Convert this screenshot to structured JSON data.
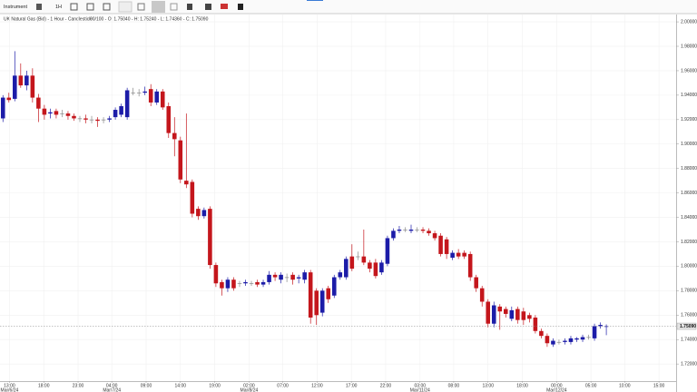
{
  "toolbar": {
    "instrument": "Instrument",
    "interval": "1H"
  },
  "chart_data": {
    "type": "candlestick",
    "title": "UK Natural Gas (Bid) - 1 Hour - Candlestick",
    "subtitle": "90/100 - O: 1.75040 - H: 1.75240 - L: 1.74360 - C: 1.75090",
    "up_color": "#1c1ca8",
    "down_color": "#c4161c",
    "flat_color": "#888888",
    "open": [
      1.921,
      1.938,
      1.937,
      1.956,
      1.948,
      1.956,
      1.938,
      1.929,
      1.925,
      1.927,
      1.925,
      1.925,
      1.923,
      1.921,
      1.921,
      1.92,
      1.92,
      1.92,
      1.92,
      1.922,
      1.924,
      1.922,
      1.942,
      1.942,
      1.942,
      1.945,
      1.934,
      1.943,
      1.931,
      1.909,
      1.903,
      1.87,
      1.869,
      1.847,
      1.841,
      1.847,
      1.801,
      1.787,
      1.782,
      1.789,
      1.786,
      1.786,
      1.786,
      1.787,
      1.785,
      1.787,
      1.793,
      1.789,
      1.791,
      1.793,
      1.79,
      1.789,
      1.795,
      1.78,
      1.762,
      1.782,
      1.776,
      1.791,
      1.791,
      1.808,
      1.808,
      1.808,
      1.803,
      1.803,
      1.795,
      1.802,
      1.823,
      1.829,
      1.83,
      1.829,
      1.83,
      1.83,
      1.829,
      1.827,
      1.825,
      1.822,
      1.807,
      1.811,
      1.811,
      1.81,
      1.791,
      1.782,
      1.771,
      1.753,
      1.767,
      1.765,
      1.757,
      1.765,
      1.763,
      1.76,
      1.758,
      1.747,
      1.743,
      1.736,
      1.738,
      1.738,
      1.738,
      1.74,
      1.74,
      1.742,
      1.741,
      1.751,
      1.7504
    ],
    "high": [
      1.94,
      1.942,
      1.976,
      1.966,
      1.96,
      1.962,
      1.941,
      1.932,
      1.929,
      1.929,
      1.928,
      1.927,
      1.925,
      1.923,
      1.924,
      1.923,
      1.922,
      1.922,
      1.923,
      1.93,
      1.933,
      1.946,
      1.946,
      1.945,
      1.947,
      1.949,
      1.945,
      1.945,
      1.934,
      1.922,
      1.906,
      1.925,
      1.871,
      1.849,
      1.848,
      1.849,
      1.803,
      1.789,
      1.791,
      1.791,
      1.788,
      1.789,
      1.788,
      1.789,
      1.789,
      1.796,
      1.795,
      1.795,
      1.794,
      1.795,
      1.793,
      1.797,
      1.797,
      1.782,
      1.782,
      1.784,
      1.793,
      1.797,
      1.808,
      1.818,
      1.812,
      1.83,
      1.805,
      1.806,
      1.805,
      1.825,
      1.831,
      1.833,
      1.832,
      1.834,
      1.832,
      1.832,
      1.831,
      1.829,
      1.827,
      1.824,
      1.813,
      1.814,
      1.813,
      1.812,
      1.793,
      1.784,
      1.773,
      1.771,
      1.769,
      1.767,
      1.767,
      1.767,
      1.766,
      1.762,
      1.76,
      1.749,
      1.745,
      1.741,
      1.74,
      1.741,
      1.743,
      1.742,
      1.744,
      1.744,
      1.753,
      1.754,
      1.7524
    ],
    "low": [
      1.918,
      1.934,
      1.935,
      1.946,
      1.944,
      1.934,
      1.918,
      1.92,
      1.921,
      1.921,
      1.922,
      1.92,
      1.919,
      1.918,
      1.917,
      1.917,
      1.914,
      1.917,
      1.918,
      1.92,
      1.922,
      1.92,
      1.94,
      1.939,
      1.94,
      1.931,
      1.932,
      1.928,
      1.905,
      1.89,
      1.868,
      1.864,
      1.84,
      1.838,
      1.839,
      1.798,
      1.783,
      1.776,
      1.779,
      1.78,
      1.783,
      1.784,
      1.784,
      1.783,
      1.783,
      1.785,
      1.788,
      1.786,
      1.787,
      1.785,
      1.786,
      1.786,
      1.753,
      1.752,
      1.759,
      1.77,
      1.774,
      1.789,
      1.789,
      1.796,
      1.805,
      1.801,
      1.795,
      1.79,
      1.793,
      1.8,
      1.821,
      1.827,
      1.828,
      1.827,
      1.828,
      1.827,
      1.825,
      1.821,
      1.808,
      1.806,
      1.805,
      1.806,
      1.806,
      1.788,
      1.779,
      1.767,
      1.75,
      1.75,
      1.748,
      1.758,
      1.755,
      1.753,
      1.752,
      1.754,
      1.745,
      1.741,
      1.734,
      1.734,
      1.736,
      1.736,
      1.736,
      1.738,
      1.738,
      1.74,
      1.739,
      1.749,
      1.7436
    ],
    "close": [
      1.938,
      1.936,
      1.956,
      1.948,
      1.956,
      1.938,
      1.929,
      1.924,
      1.926,
      1.924,
      1.925,
      1.923,
      1.921,
      1.921,
      1.92,
      1.92,
      1.919,
      1.92,
      1.921,
      1.928,
      1.931,
      1.944,
      1.942,
      1.942,
      1.943,
      1.934,
      1.943,
      1.93,
      1.909,
      1.904,
      1.871,
      1.867,
      1.843,
      1.841,
      1.846,
      1.801,
      1.786,
      1.782,
      1.789,
      1.782,
      1.786,
      1.787,
      1.786,
      1.785,
      1.787,
      1.793,
      1.791,
      1.793,
      1.791,
      1.789,
      1.791,
      1.795,
      1.758,
      1.76,
      1.78,
      1.773,
      1.791,
      1.795,
      1.806,
      1.798,
      1.808,
      1.803,
      1.798,
      1.792,
      1.803,
      1.823,
      1.829,
      1.83,
      1.83,
      1.83,
      1.83,
      1.829,
      1.827,
      1.823,
      1.81,
      1.81,
      1.811,
      1.808,
      1.808,
      1.791,
      1.782,
      1.771,
      1.753,
      1.768,
      1.763,
      1.761,
      1.764,
      1.756,
      1.756,
      1.757,
      1.747,
      1.743,
      1.737,
      1.739,
      1.738,
      1.739,
      1.741,
      1.741,
      1.742,
      1.742,
      1.751,
      1.752,
      1.7509
    ],
    "last_price": {
      "value": 1.7509,
      "label": "1.75090"
    },
    "xlim": [
      -0.5,
      113.8
    ],
    "xticks": [
      {
        "value": 1.1,
        "label": "13:00",
        "date": "Mar/6/24"
      },
      {
        "value": 6.9,
        "label": "18:00"
      },
      {
        "value": 12.7,
        "label": "23:00"
      },
      {
        "value": 18.4,
        "label": "04:00",
        "date": "Mar/7/24"
      },
      {
        "value": 24.2,
        "label": "09:00"
      },
      {
        "value": 30.0,
        "label": "14:00"
      },
      {
        "value": 35.8,
        "label": "19:00"
      },
      {
        "value": 41.6,
        "label": "02:00",
        "date": "Mar/8/24"
      },
      {
        "value": 47.3,
        "label": "07:00"
      },
      {
        "value": 53.1,
        "label": "12:00"
      },
      {
        "value": 58.9,
        "label": "17:00"
      },
      {
        "value": 64.7,
        "label": "22:00"
      },
      {
        "value": 70.5,
        "label": "03:00",
        "date": "Mar/11/24"
      },
      {
        "value": 76.2,
        "label": "08:00"
      },
      {
        "value": 82.0,
        "label": "13:00"
      },
      {
        "value": 87.8,
        "label": "18:00"
      },
      {
        "value": 93.6,
        "label": "00:00",
        "date": "Mar/12/24"
      },
      {
        "value": 99.4,
        "label": "05:00"
      },
      {
        "value": 105.1,
        "label": "10:00"
      },
      {
        "value": 110.9,
        "label": "15:00"
      }
    ],
    "ylim": [
      1.706,
      2.006
    ],
    "yticks": [
      {
        "value": 1.72,
        "label": "1.72000"
      },
      {
        "value": 1.74,
        "label": "1.74000"
      },
      {
        "value": 1.76,
        "label": "1.76000"
      },
      {
        "value": 1.78,
        "label": "1.78000"
      },
      {
        "value": 1.8,
        "label": "1.80000"
      },
      {
        "value": 1.82,
        "label": "1.82000"
      },
      {
        "value": 1.84,
        "label": "1.84000"
      },
      {
        "value": 1.86,
        "label": "1.86000"
      },
      {
        "value": 1.88,
        "label": "1.88000"
      },
      {
        "value": 1.9,
        "label": "1.90000"
      },
      {
        "value": 1.92,
        "label": "1.92000"
      },
      {
        "value": 1.94,
        "label": "1.94000"
      },
      {
        "value": 1.96,
        "label": "1.96000"
      },
      {
        "value": 1.98,
        "label": "1.98000"
      },
      {
        "value": 2.0,
        "label": "2.00000"
      }
    ],
    "grid": true
  }
}
